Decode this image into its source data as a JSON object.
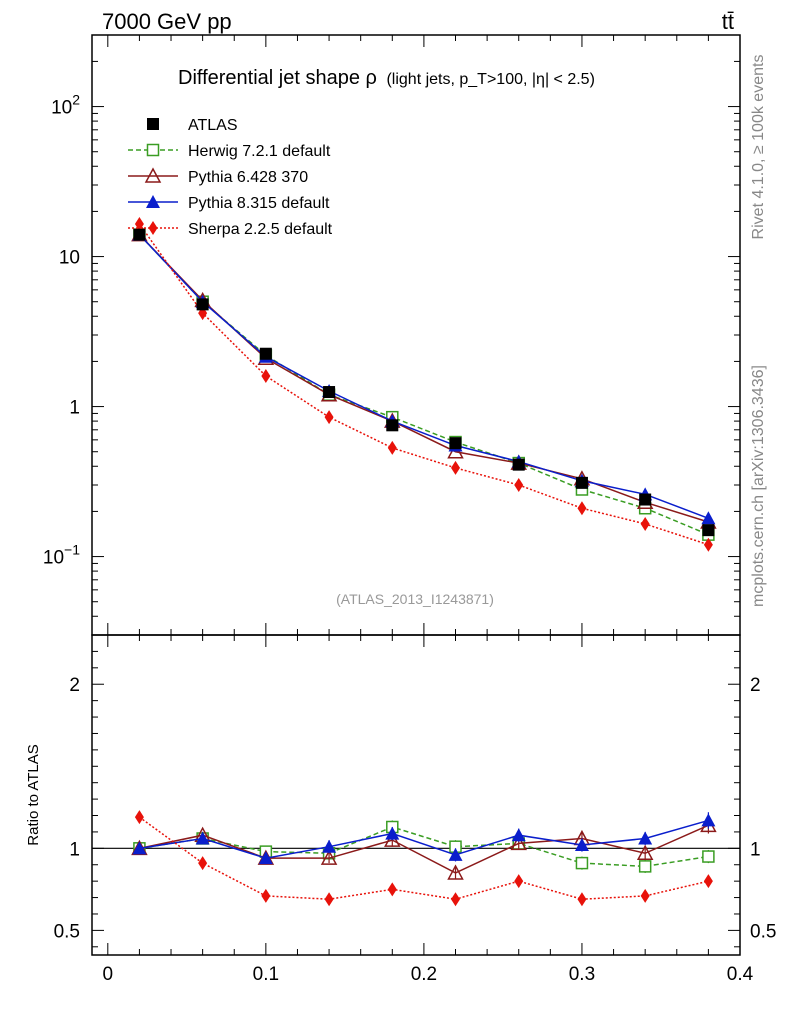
{
  "header": {
    "energy_label": "7000 GeV pp",
    "process_label": "tt̄"
  },
  "side": {
    "rivet_label": "Rivet 4.1.0, ≥ 100k events",
    "mcplots_label": "mcplots.cern.ch [arXiv:1306.3436]"
  },
  "chart_data": {
    "type": "line",
    "title": "Differential jet shape ρ",
    "subtitle": "(light jets, p_T>100, |η| < 2.5)",
    "analysis_id": "(ATLAS_2013_I1243871)",
    "x": [
      0.02,
      0.06,
      0.1,
      0.14,
      0.18,
      0.22,
      0.26,
      0.3,
      0.34,
      0.38
    ],
    "xlim": [
      -0.01,
      0.4
    ],
    "x_ticks": [
      0,
      0.1,
      0.2,
      0.3,
      0.4
    ],
    "x_tick_labels": [
      "0",
      "0.1",
      "0.2",
      "0.3",
      "0.4"
    ],
    "main_yscale": "log",
    "main_ylim": [
      0.03,
      300
    ],
    "main_y_ticks": [
      {
        "value": 0.1,
        "base": "10",
        "exp": "−1"
      },
      {
        "value": 1,
        "base": "1",
        "exp": ""
      },
      {
        "value": 10,
        "base": "10",
        "exp": ""
      },
      {
        "value": 100,
        "base": "10",
        "exp": "2"
      }
    ],
    "ratio_ylabel": "Ratio to ATLAS",
    "ratio_ylim": [
      0.35,
      2.3
    ],
    "ratio_y_ticks": [
      0.5,
      1,
      2
    ],
    "ratio_y_tick_labels": [
      "0.5",
      "1",
      "2"
    ],
    "series": [
      {
        "name": "ATLAS",
        "color": "#000000",
        "marker": "square-filled",
        "line": "none",
        "values": [
          14.0,
          4.8,
          2.25,
          1.25,
          0.75,
          0.57,
          0.41,
          0.31,
          0.24,
          0.15
        ],
        "ratio": [
          1.0,
          1.0,
          1.0,
          1.0,
          1.0,
          1.0,
          1.0,
          1.0,
          1.0,
          1.0
        ]
      },
      {
        "name": "Herwig 7.2.1 default",
        "color": "#3a9d23",
        "marker": "square-open",
        "line": "dashed",
        "values": [
          14.0,
          5.0,
          2.2,
          1.2,
          0.85,
          0.58,
          0.42,
          0.28,
          0.21,
          0.14
        ],
        "ratio": [
          1.0,
          1.06,
          0.98,
          0.97,
          1.13,
          1.01,
          1.03,
          0.91,
          0.89,
          0.95
        ],
        "ratio_err": [
          0.02,
          0.02,
          0.03,
          0.03,
          0.04,
          0.04,
          0.04,
          0.04,
          0.04,
          0.04
        ]
      },
      {
        "name": "Pythia 6.428 370",
        "color": "#8b1a1a",
        "marker": "triangle-open",
        "line": "solid",
        "values": [
          14.0,
          5.1,
          2.1,
          1.2,
          0.8,
          0.5,
          0.42,
          0.33,
          0.23,
          0.17
        ],
        "ratio": [
          1.0,
          1.08,
          0.94,
          0.94,
          1.05,
          0.85,
          1.03,
          1.06,
          0.97,
          1.14
        ],
        "ratio_err": [
          0.02,
          0.02,
          0.03,
          0.03,
          0.04,
          0.04,
          0.04,
          0.04,
          0.04,
          0.05
        ]
      },
      {
        "name": "Pythia 8.315 default",
        "color": "#0a1ecc",
        "marker": "triangle-filled",
        "line": "solid",
        "values": [
          14.0,
          5.0,
          2.15,
          1.27,
          0.8,
          0.55,
          0.43,
          0.32,
          0.26,
          0.18
        ],
        "ratio": [
          1.0,
          1.06,
          0.94,
          1.01,
          1.09,
          0.96,
          1.08,
          1.02,
          1.06,
          1.17
        ],
        "ratio_err": [
          0.02,
          0.02,
          0.03,
          0.04,
          0.04,
          0.04,
          0.04,
          0.04,
          0.04,
          0.05
        ]
      },
      {
        "name": "Sherpa 2.2.5 default",
        "color": "#e8120a",
        "marker": "diamond-filled",
        "line": "dotted",
        "values": [
          16.5,
          4.2,
          1.6,
          0.85,
          0.53,
          0.39,
          0.3,
          0.21,
          0.165,
          0.12
        ],
        "ratio": [
          1.19,
          0.91,
          0.71,
          0.69,
          0.75,
          0.69,
          0.8,
          0.69,
          0.71,
          0.8
        ],
        "ratio_err": [
          0.02,
          0.02,
          0.02,
          0.03,
          0.03,
          0.03,
          0.03,
          0.03,
          0.03,
          0.03
        ]
      }
    ]
  }
}
